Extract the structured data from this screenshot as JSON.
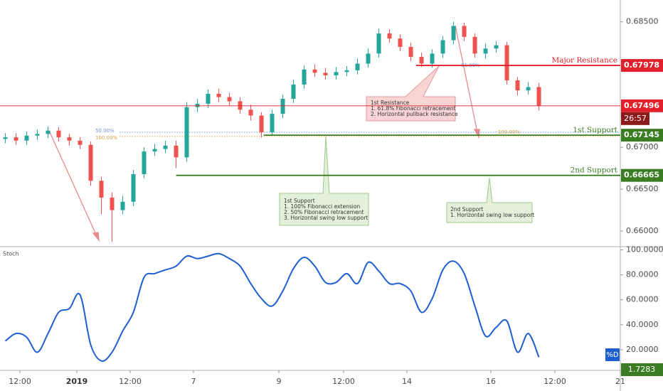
{
  "chart_data": [
    {
      "type": "candlestick",
      "x": [
        0,
        1,
        2,
        3,
        4,
        5,
        6,
        7,
        8,
        9,
        10,
        11,
        12,
        13,
        14,
        15,
        16,
        17,
        18,
        19,
        20,
        21,
        22,
        23,
        24,
        25,
        26,
        27,
        28,
        29,
        30,
        31,
        32,
        33,
        34,
        35,
        36,
        37,
        38,
        39,
        40,
        41,
        42,
        43,
        44,
        45,
        46,
        47,
        48,
        49,
        50
      ],
      "open": [
        0.671,
        0.6712,
        0.6708,
        0.6714,
        0.6716,
        0.672,
        0.6712,
        0.6708,
        0.6703,
        0.666,
        0.664,
        0.6625,
        0.6635,
        0.6668,
        0.6695,
        0.6698,
        0.6702,
        0.6688,
        0.6748,
        0.6752,
        0.6764,
        0.676,
        0.6755,
        0.6745,
        0.6738,
        0.6718,
        0.674,
        0.6758,
        0.6775,
        0.6793,
        0.6789,
        0.6786,
        0.679,
        0.6792,
        0.68,
        0.6812,
        0.6836,
        0.683,
        0.682,
        0.6808,
        0.68,
        0.6812,
        0.6828,
        0.6845,
        0.6832,
        0.6812,
        0.6818,
        0.6822,
        0.678,
        0.6768,
        0.6772
      ],
      "high": [
        0.6717,
        0.6717,
        0.6719,
        0.6721,
        0.6725,
        0.6724,
        0.6716,
        0.6712,
        0.6707,
        0.6665,
        0.6646,
        0.6642,
        0.6673,
        0.67,
        0.6704,
        0.6708,
        0.6708,
        0.6754,
        0.6758,
        0.6769,
        0.677,
        0.6765,
        0.676,
        0.6751,
        0.6742,
        0.6745,
        0.6763,
        0.6781,
        0.6798,
        0.6799,
        0.6795,
        0.6796,
        0.6797,
        0.6806,
        0.6818,
        0.6842,
        0.6841,
        0.6835,
        0.6825,
        0.6813,
        0.6817,
        0.6833,
        0.685,
        0.6849,
        0.6836,
        0.6824,
        0.6827,
        0.6826,
        0.6784,
        0.6778,
        0.6777
      ],
      "low": [
        0.6705,
        0.6703,
        0.6703,
        0.6709,
        0.6711,
        0.6707,
        0.6702,
        0.6698,
        0.6654,
        0.662,
        0.6587,
        0.662,
        0.663,
        0.6663,
        0.669,
        0.6693,
        0.6675,
        0.6683,
        0.6742,
        0.6747,
        0.6754,
        0.675,
        0.674,
        0.6732,
        0.6712,
        0.6714,
        0.6735,
        0.6753,
        0.677,
        0.6784,
        0.6781,
        0.6781,
        0.6785,
        0.6787,
        0.6795,
        0.6807,
        0.6825,
        0.6815,
        0.6803,
        0.6796,
        0.6795,
        0.6807,
        0.6823,
        0.6827,
        0.6807,
        0.6806,
        0.6813,
        0.6775,
        0.6762,
        0.6763,
        0.6744
      ],
      "close": [
        0.6712,
        0.6708,
        0.6714,
        0.6716,
        0.672,
        0.6712,
        0.6708,
        0.6703,
        0.666,
        0.664,
        0.6625,
        0.6635,
        0.6668,
        0.6695,
        0.6698,
        0.6702,
        0.6688,
        0.6748,
        0.6752,
        0.6764,
        0.676,
        0.6755,
        0.6745,
        0.6738,
        0.6718,
        0.674,
        0.6758,
        0.6775,
        0.6793,
        0.6789,
        0.6786,
        0.679,
        0.6792,
        0.68,
        0.6812,
        0.6836,
        0.683,
        0.682,
        0.6808,
        0.68,
        0.6812,
        0.6828,
        0.6845,
        0.6832,
        0.6812,
        0.6818,
        0.6822,
        0.678,
        0.6768,
        0.6772,
        0.67496
      ],
      "up_color": "#26a69a",
      "down_color": "#ef5350",
      "xlim": [
        -0.5,
        57.63
      ],
      "ylim": [
        0.6583,
        0.6876
      ],
      "yticks": [
        {
          "value": 0.685,
          "label": "0.68500"
        },
        {
          "value": 0.67,
          "label": "0.67000"
        },
        {
          "value": 0.665,
          "label": "0.66500"
        },
        {
          "value": 0.66,
          "label": "0.66000"
        }
      ],
      "levels": [
        {
          "name": "Major Resistance",
          "value": 0.67978,
          "x0": 38.5,
          "color": "#e0202c"
        },
        {
          "value": 0.67496,
          "x0": -0.5,
          "color": "#e0202c",
          "countdown": "26:57"
        },
        {
          "name": "1st Support",
          "value": 0.67145,
          "x0": 24.2,
          "color": "#3b7d23"
        },
        {
          "name": "2nd Support",
          "value": 0.66665,
          "x0": 16,
          "color": "#3b7d23"
        }
      ],
      "fib_lines": [
        {
          "label": "50.00%",
          "value": 0.6718,
          "color": "#6f95d8"
        },
        {
          "label": "100.00%",
          "value": 0.6713,
          "color": "#e0a040"
        }
      ],
      "fib_labels": [
        "61.80%",
        "100.00%"
      ],
      "callouts": [
        {
          "lines": [
            "1st Resistance",
            "1. 61.8%  Fibonacci retracement",
            "2. Horizontal pullback resistance"
          ]
        },
        {
          "lines": [
            "1st Support",
            "1. 100% Fibonacci extension",
            "2. 50% Fibonacci retracement",
            "3. Horizontal swing low support"
          ]
        },
        {
          "lines": [
            "2nd Support",
            "1. Horizontal swing low support"
          ]
        }
      ]
    },
    {
      "type": "line",
      "title": "Stoch",
      "x": [
        0,
        1,
        2,
        3,
        4,
        5,
        6,
        7,
        8,
        9,
        10,
        11,
        12,
        13,
        14,
        15,
        16,
        17,
        18,
        19,
        20,
        21,
        22,
        23,
        24,
        25,
        26,
        27,
        28,
        29,
        30,
        31,
        32,
        33,
        34,
        35,
        36,
        37,
        38,
        39,
        40,
        41,
        42,
        43,
        44,
        45,
        46,
        47,
        48,
        49,
        50
      ],
      "series": [
        {
          "name": "%D",
          "color": "#1e5fd0",
          "values": [
            27,
            33,
            30,
            18,
            33,
            50,
            53,
            64,
            24,
            11,
            18,
            35,
            50,
            78,
            81,
            84,
            87,
            95,
            93,
            95,
            97,
            93,
            87,
            73,
            61,
            55,
            67,
            85,
            94,
            87,
            74,
            74,
            81,
            73,
            90,
            83,
            73,
            73,
            67,
            50,
            61,
            84,
            91,
            81,
            55,
            31,
            38,
            43,
            18,
            33,
            14
          ]
        }
      ],
      "xlim": [
        -0.5,
        57.63
      ],
      "ylim": [
        4,
        102
      ],
      "yticks": [
        {
          "value": 100,
          "label": "100.0000"
        },
        {
          "value": 80,
          "label": "80.0000"
        },
        {
          "value": 60,
          "label": "60.0000"
        },
        {
          "value": 40,
          "label": "40.0000"
        },
        {
          "value": 20,
          "label": "20.0000"
        }
      ],
      "xticks": [
        {
          "value": 1.37,
          "label": "12:00"
        },
        {
          "value": 6.7,
          "label": "2019"
        },
        {
          "value": 11.7,
          "label": "12:00"
        },
        {
          "value": 17.63,
          "label": "7"
        },
        {
          "value": 25.63,
          "label": "9"
        },
        {
          "value": 31.7,
          "label": "12:00"
        },
        {
          "value": 37.63,
          "label": "14"
        },
        {
          "value": 45.5,
          "label": "16"
        },
        {
          "value": 51.5,
          "label": "12:00"
        },
        {
          "value": 57.63,
          "label": "21"
        }
      ],
      "annotations": [
        "1.7283"
      ]
    }
  ]
}
